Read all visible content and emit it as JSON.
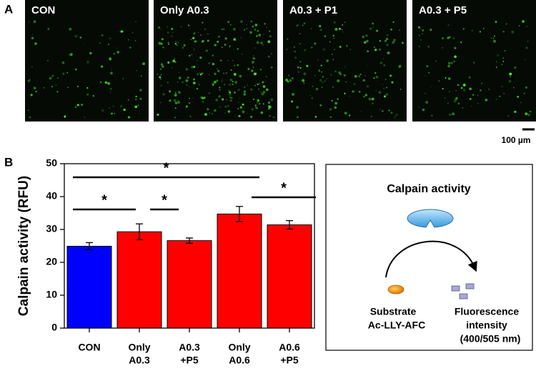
{
  "panel_a": {
    "label": "A",
    "images": [
      {
        "label": "CON"
      },
      {
        "label": "Only A0.3"
      },
      {
        "label": "A0.3 + P1"
      },
      {
        "label": "A0.3 + P5"
      }
    ],
    "scale_bar": "100 µm"
  },
  "panel_b": {
    "label": "B"
  },
  "chart_data": {
    "type": "bar",
    "y_label": "Calpain activity (RFU)",
    "categories": [
      [
        "CON"
      ],
      [
        "Only",
        "A0.3"
      ],
      [
        "A0.3",
        "+P5"
      ],
      [
        "Only",
        "A0.6"
      ],
      [
        "A0.6",
        "+P5"
      ]
    ],
    "values": [
      24.9,
      29.3,
      26.6,
      34.7,
      31.4
    ],
    "errors": [
      1.1,
      2.4,
      0.8,
      2.3,
      1.3
    ],
    "colors": [
      "#0000ff",
      "#ff0000",
      "#ff0000",
      "#ff0000",
      "#ff0000"
    ],
    "ylim": [
      0,
      50
    ],
    "yticks": [
      0,
      10,
      20,
      30,
      40,
      50
    ],
    "significance": [
      {
        "label": "*",
        "between": [
          0,
          1
        ]
      },
      {
        "label": "*",
        "between": [
          1,
          2
        ]
      },
      {
        "label": "*",
        "between": [
          0,
          3
        ]
      },
      {
        "label": "*",
        "between": [
          3,
          4
        ]
      }
    ]
  },
  "diagram": {
    "title": "Calpain activity",
    "substrate": [
      "Substrate",
      "Ac-LLY-AFC"
    ],
    "product": [
      "Fluorescence",
      "intensity",
      "(400/505 nm)"
    ]
  }
}
